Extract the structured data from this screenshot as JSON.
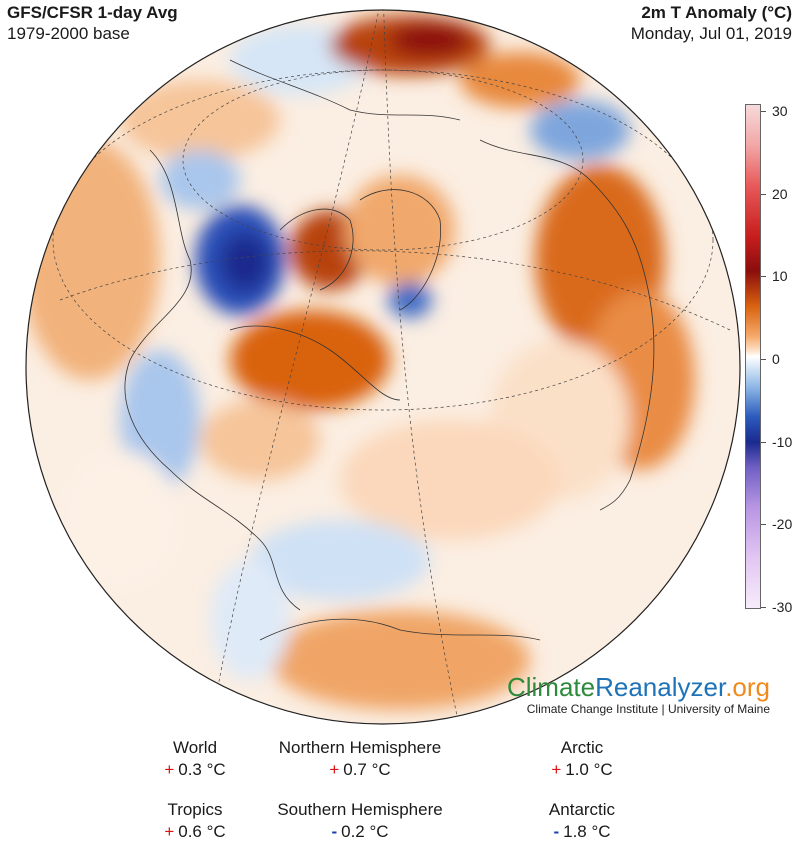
{
  "header": {
    "title_left": "GFS/CFSR 1-day Avg",
    "subtitle_left": "1979-2000 base",
    "title_right": "2m T Anomaly (°C)",
    "subtitle_right": "Monday, Jul 01, 2019"
  },
  "colorbar": {
    "ticks": [
      "30",
      "20",
      "10",
      "0",
      "-10",
      "-20",
      "-30"
    ],
    "colors": {
      "warm_extreme": "#f2a7a7",
      "warm_strong": "#8b0d0d",
      "warm": "#e07a2a",
      "neutral": "#ffffff",
      "cool": "#8fb8e6",
      "cold": "#1a2a8e",
      "cold_extreme": "#b896e3"
    }
  },
  "brand": {
    "part1": "Climate",
    "part2": "Reanalyzer",
    "part3": ".org",
    "affiliation": "Climate Change Institute | University of Maine"
  },
  "stats": [
    {
      "name": "World",
      "sign": "+",
      "value": "0.3 °C"
    },
    {
      "name": "Northern Hemisphere",
      "sign": "+",
      "value": "0.7 °C"
    },
    {
      "name": "Arctic",
      "sign": "+",
      "value": "1.0 °C"
    },
    {
      "name": "Tropics",
      "sign": "+",
      "value": "0.6 °C"
    },
    {
      "name": "Southern Hemisphere",
      "sign": "-",
      "value": "0.2 °C"
    },
    {
      "name": "Antarctic",
      "sign": "-",
      "value": "1.8 °C"
    }
  ]
}
